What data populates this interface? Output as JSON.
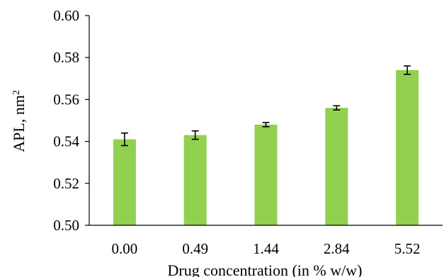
{
  "chart_data": {
    "type": "bar",
    "categories": [
      "0.00",
      "0.49",
      "1.44",
      "2.84",
      "5.52"
    ],
    "values": [
      0.541,
      0.543,
      0.548,
      0.556,
      0.574
    ],
    "error": [
      0.003,
      0.002,
      0.001,
      0.001,
      0.002
    ],
    "xlabel": "Drug concentration (in % w/w)",
    "ylabel": "APL, nm",
    "ylabel_superscript": "2",
    "ylim": [
      0.5,
      0.6
    ],
    "yticks": [
      "0.50",
      "0.52",
      "0.54",
      "0.56",
      "0.58",
      "0.60"
    ],
    "grid": false,
    "legend": "none",
    "colors": {
      "bar": "#92d050",
      "axis": "#000000",
      "error_bar": "#000000"
    }
  }
}
